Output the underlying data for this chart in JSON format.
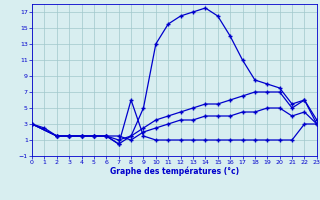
{
  "xlabel": "Graphe des températures (°c)",
  "background_color": "#d8eef0",
  "grid_color": "#a0c8cc",
  "line_color": "#0000cc",
  "xlim": [
    0,
    23
  ],
  "ylim": [
    -1,
    18
  ],
  "xticks": [
    0,
    1,
    2,
    3,
    4,
    5,
    6,
    7,
    8,
    9,
    10,
    11,
    12,
    13,
    14,
    15,
    16,
    17,
    18,
    19,
    20,
    21,
    22,
    23
  ],
  "yticks": [
    -1,
    1,
    3,
    5,
    7,
    9,
    11,
    13,
    15,
    17
  ],
  "series_max": {
    "x": [
      0,
      2,
      3,
      4,
      5,
      6,
      7,
      8,
      9,
      10,
      11,
      12,
      13,
      14,
      15,
      16,
      17,
      18,
      19,
      20,
      21,
      22,
      23
    ],
    "y": [
      3,
      1.5,
      1.5,
      1.5,
      1.5,
      1.5,
      0.5,
      1.5,
      5.0,
      13.0,
      15.5,
      16.5,
      17.0,
      17.5,
      16.5,
      14.0,
      11.0,
      8.5,
      8.0,
      7.5,
      5.5,
      6.0,
      3.5
    ]
  },
  "series_mid1": {
    "x": [
      0,
      2,
      3,
      4,
      5,
      6,
      7,
      8,
      9,
      10,
      11,
      12,
      13,
      14,
      15,
      16,
      17,
      18,
      19,
      20,
      21,
      22,
      23
    ],
    "y": [
      3,
      1.5,
      1.5,
      1.5,
      1.5,
      1.5,
      1.0,
      1.5,
      2.5,
      3.5,
      4.0,
      4.5,
      5.0,
      5.5,
      5.5,
      6.0,
      6.5,
      7.0,
      7.0,
      7.0,
      5.0,
      6.0,
      3.0
    ]
  },
  "series_mid2": {
    "x": [
      0,
      2,
      3,
      4,
      5,
      6,
      7,
      8,
      9,
      10,
      11,
      12,
      13,
      14,
      15,
      16,
      17,
      18,
      19,
      20,
      21,
      22,
      23
    ],
    "y": [
      3,
      1.5,
      1.5,
      1.5,
      1.5,
      1.5,
      1.5,
      1.0,
      2.0,
      2.5,
      3.0,
      3.5,
      3.5,
      4.0,
      4.0,
      4.0,
      4.5,
      4.5,
      5.0,
      5.0,
      4.0,
      4.5,
      3.0
    ]
  },
  "series_zigzag": {
    "x": [
      0,
      1,
      2,
      3,
      4,
      5,
      6,
      7,
      8,
      9,
      10,
      11,
      12,
      13,
      14,
      15,
      16,
      17,
      18,
      19,
      20,
      21,
      22,
      23
    ],
    "y": [
      3,
      2.5,
      1.5,
      1.5,
      1.5,
      1.5,
      1.5,
      0.5,
      6.0,
      1.5,
      1.0,
      1.0,
      1.0,
      1.0,
      1.0,
      1.0,
      1.0,
      1.0,
      1.0,
      1.0,
      1.0,
      1.0,
      3.0,
      3.0
    ]
  }
}
